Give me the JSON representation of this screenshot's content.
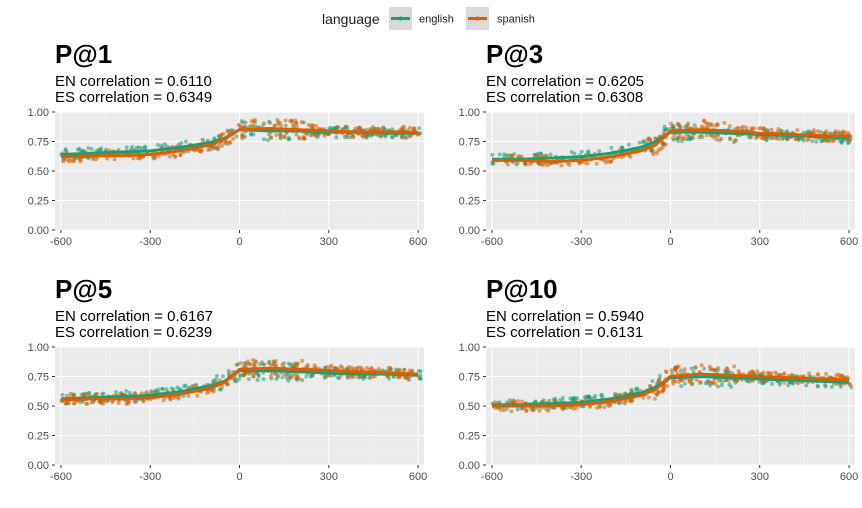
{
  "chart_data": [
    {
      "type": "scatter",
      "title": "P@1",
      "subtitle_lines": [
        "EN correlation = 0.6110",
        "ES correlation = 0.6349"
      ],
      "xlim": [
        -620,
        620
      ],
      "ylim": [
        0,
        1
      ],
      "xticks": [
        -600,
        -300,
        0,
        300,
        600
      ],
      "yticks": [
        0.0,
        0.25,
        0.5,
        0.75,
        1.0
      ],
      "xtick_labels": [
        "-600",
        "-300",
        "0",
        "300",
        "600"
      ],
      "ytick_labels": [
        "0.00",
        "0.25",
        "0.50",
        "0.75",
        "1.00"
      ],
      "grid": true,
      "series": [
        {
          "name": "english",
          "color": "#1b9e77",
          "x": [
            -600,
            -500,
            -400,
            -300,
            -200,
            -100,
            -50,
            0,
            100,
            200,
            300,
            400,
            500,
            600
          ],
          "y": [
            0.64,
            0.65,
            0.66,
            0.67,
            0.7,
            0.74,
            0.78,
            0.85,
            0.84,
            0.84,
            0.83,
            0.83,
            0.82,
            0.82
          ]
        },
        {
          "name": "spanish",
          "color": "#d95f02",
          "x": [
            -600,
            -500,
            -400,
            -300,
            -200,
            -100,
            -50,
            0,
            100,
            200,
            300,
            400,
            500,
            600
          ],
          "y": [
            0.62,
            0.63,
            0.63,
            0.64,
            0.67,
            0.72,
            0.77,
            0.85,
            0.86,
            0.85,
            0.84,
            0.83,
            0.83,
            0.83
          ]
        }
      ]
    },
    {
      "type": "scatter",
      "title": "P@3",
      "subtitle_lines": [
        "EN correlation = 0.6205",
        "ES correlation = 0.6308"
      ],
      "xlim": [
        -620,
        620
      ],
      "ylim": [
        0,
        1
      ],
      "xticks": [
        -600,
        -300,
        0,
        300,
        600
      ],
      "yticks": [
        0.0,
        0.25,
        0.5,
        0.75,
        1.0
      ],
      "xtick_labels": [
        "-600",
        "-300",
        "0",
        "300",
        "600"
      ],
      "ytick_labels": [
        "0.00",
        "0.25",
        "0.50",
        "0.75",
        "1.00"
      ],
      "grid": true,
      "series": [
        {
          "name": "english",
          "color": "#1b9e77",
          "x": [
            -600,
            -500,
            -400,
            -300,
            -200,
            -100,
            -50,
            0,
            100,
            200,
            300,
            400,
            500,
            600
          ],
          "y": [
            0.6,
            0.6,
            0.61,
            0.62,
            0.65,
            0.7,
            0.75,
            0.83,
            0.83,
            0.82,
            0.81,
            0.8,
            0.79,
            0.78
          ]
        },
        {
          "name": "spanish",
          "color": "#d95f02",
          "x": [
            -600,
            -500,
            -400,
            -300,
            -200,
            -100,
            -50,
            0,
            100,
            200,
            300,
            400,
            500,
            600
          ],
          "y": [
            0.59,
            0.59,
            0.58,
            0.59,
            0.62,
            0.67,
            0.72,
            0.84,
            0.85,
            0.84,
            0.82,
            0.81,
            0.8,
            0.79
          ]
        }
      ]
    },
    {
      "type": "scatter",
      "title": "P@5",
      "subtitle_lines": [
        "EN correlation = 0.6167",
        "ES correlation = 0.6239"
      ],
      "xlim": [
        -620,
        620
      ],
      "ylim": [
        0,
        1
      ],
      "xticks": [
        -600,
        -300,
        0,
        300,
        600
      ],
      "yticks": [
        0.0,
        0.25,
        0.5,
        0.75,
        1.0
      ],
      "xtick_labels": [
        "-600",
        "-300",
        "0",
        "300",
        "600"
      ],
      "ytick_labels": [
        "0.00",
        "0.25",
        "0.50",
        "0.75",
        "1.00"
      ],
      "grid": true,
      "series": [
        {
          "name": "english",
          "color": "#1b9e77",
          "x": [
            -600,
            -500,
            -400,
            -300,
            -200,
            -100,
            -50,
            0,
            100,
            200,
            300,
            400,
            500,
            600
          ],
          "y": [
            0.56,
            0.57,
            0.58,
            0.59,
            0.62,
            0.67,
            0.71,
            0.8,
            0.8,
            0.79,
            0.78,
            0.77,
            0.77,
            0.76
          ]
        },
        {
          "name": "spanish",
          "color": "#d95f02",
          "x": [
            -600,
            -500,
            -400,
            -300,
            -200,
            -100,
            -50,
            0,
            100,
            200,
            300,
            400,
            500,
            600
          ],
          "y": [
            0.55,
            0.56,
            0.56,
            0.57,
            0.6,
            0.65,
            0.7,
            0.81,
            0.82,
            0.81,
            0.8,
            0.79,
            0.78,
            0.77
          ]
        }
      ]
    },
    {
      "type": "scatter",
      "title": "P@10",
      "subtitle_lines": [
        "EN correlation = 0.5940",
        "ES correlation = 0.6131"
      ],
      "xlim": [
        -620,
        620
      ],
      "ylim": [
        0,
        1
      ],
      "xticks": [
        -600,
        -300,
        0,
        300,
        600
      ],
      "yticks": [
        0.0,
        0.25,
        0.5,
        0.75,
        1.0
      ],
      "xtick_labels": [
        "-600",
        "-300",
        "0",
        "300",
        "600"
      ],
      "ytick_labels": [
        "0.00",
        "0.25",
        "0.50",
        "0.75",
        "1.00"
      ],
      "grid": true,
      "series": [
        {
          "name": "english",
          "color": "#1b9e77",
          "x": [
            -600,
            -500,
            -400,
            -300,
            -200,
            -100,
            -50,
            0,
            100,
            200,
            300,
            400,
            500,
            600
          ],
          "y": [
            0.51,
            0.51,
            0.52,
            0.53,
            0.56,
            0.61,
            0.66,
            0.74,
            0.75,
            0.74,
            0.73,
            0.72,
            0.71,
            0.7
          ]
        },
        {
          "name": "spanish",
          "color": "#d95f02",
          "x": [
            -600,
            -500,
            -400,
            -300,
            -200,
            -100,
            -50,
            0,
            100,
            200,
            300,
            400,
            500,
            600
          ],
          "y": [
            0.5,
            0.5,
            0.5,
            0.51,
            0.54,
            0.59,
            0.64,
            0.75,
            0.77,
            0.76,
            0.75,
            0.74,
            0.73,
            0.72
          ]
        }
      ]
    }
  ],
  "legend": {
    "title": "language",
    "placement": "top",
    "items": [
      {
        "label": "english",
        "color": "#1b9e77"
      },
      {
        "label": "spanish",
        "color": "#d95f02"
      }
    ]
  }
}
